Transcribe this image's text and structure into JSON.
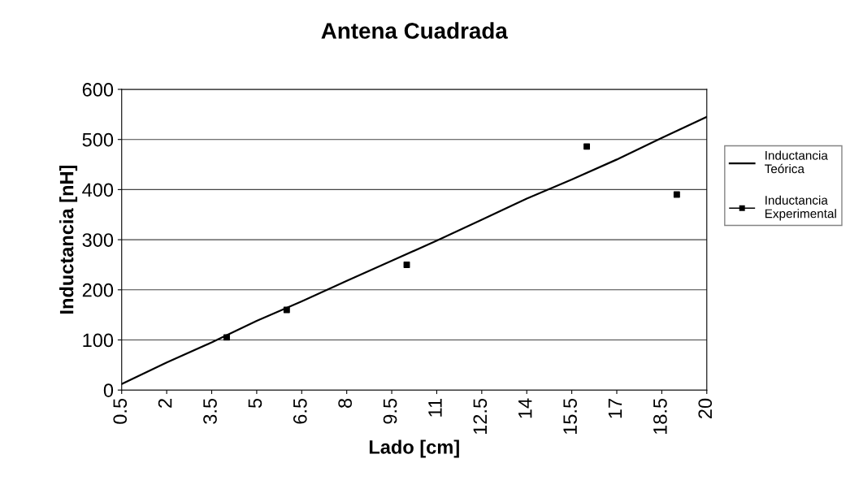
{
  "chart_data": {
    "type": "line",
    "title": "Antena Cuadrada",
    "xlabel": "Lado [cm]",
    "ylabel": "Inductancia [nH]",
    "xlim": [
      0.5,
      20
    ],
    "xticks": [
      0.5,
      2,
      3.5,
      5,
      6.5,
      8,
      9.5,
      11,
      12.5,
      14,
      15.5,
      17,
      18.5,
      20
    ],
    "ylim": [
      0,
      600
    ],
    "yticks": [
      0,
      100,
      200,
      300,
      400,
      500,
      600
    ],
    "grid": "y",
    "legend": "right",
    "series": [
      {
        "name": "Inductancia\nTeórica",
        "color": "#000000",
        "marker": "none",
        "line_style": "solid",
        "x": [
          0.5,
          2,
          3.5,
          5,
          6.5,
          8,
          9.5,
          11,
          12.5,
          14,
          15.5,
          17,
          18.5,
          20
        ],
        "values": [
          12,
          55,
          95,
          138,
          177,
          218,
          258,
          298,
          340,
          382,
          420,
          460,
          503,
          545
        ]
      },
      {
        "name": "Inductancia\nExperimental",
        "type": "scatter",
        "color": "#000000",
        "marker": "square",
        "x": [
          4,
          6,
          10,
          16,
          19
        ],
        "values": [
          105,
          160,
          250,
          486,
          390
        ]
      }
    ]
  }
}
